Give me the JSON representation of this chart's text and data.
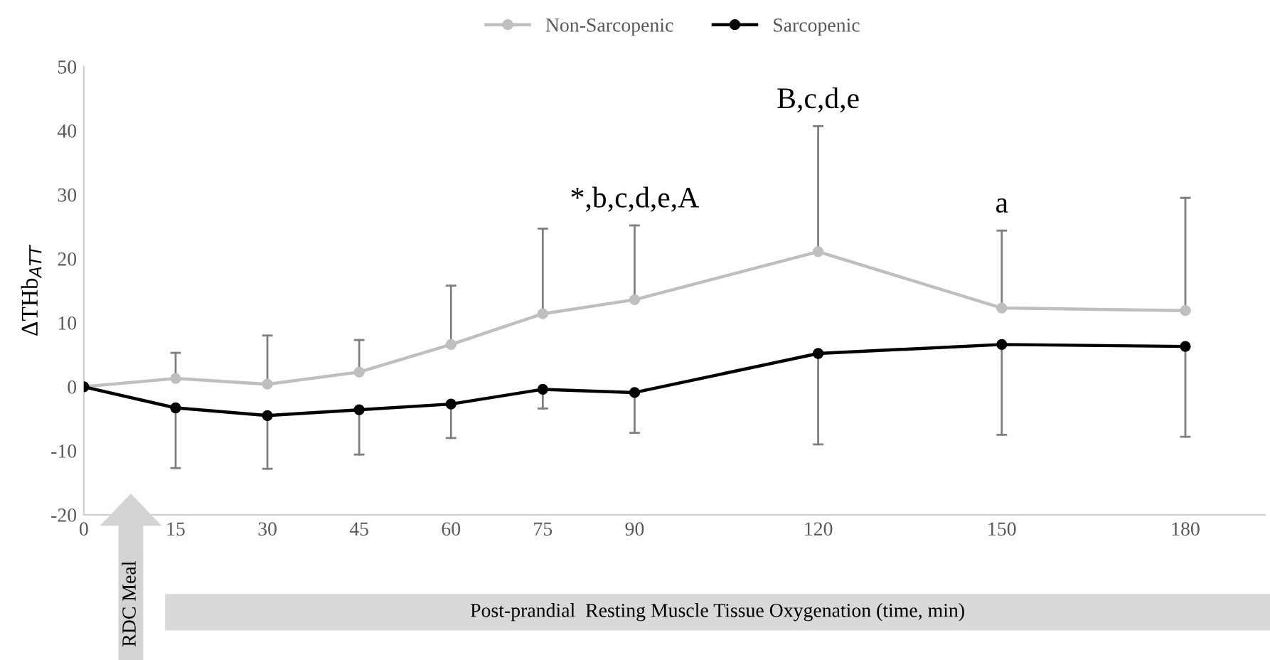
{
  "chart_data": {
    "type": "line",
    "xlabel": "Post-prandial  Resting Muscle Tissue Oxygenation (time, min)",
    "ylabel": "ΔTHb$_{ATT}$",
    "x": [
      0,
      15,
      30,
      45,
      60,
      75,
      90,
      120,
      150,
      180
    ],
    "series": [
      {
        "name": "Non-Sarcopenic",
        "color": "#bfbfbf",
        "values": [
          0,
          1.3,
          0.4,
          2.3,
          6.6,
          11.4,
          13.6,
          21.1,
          12.3,
          11.9
        ],
        "errors": [
          null,
          [
            1.3,
            5.3
          ],
          [
            0.4,
            8.0
          ],
          [
            2.3,
            7.3
          ],
          [
            6.6,
            15.8
          ],
          [
            11.4,
            24.7
          ],
          [
            13.6,
            25.2
          ],
          [
            21.1,
            40.7
          ],
          [
            12.3,
            24.4
          ],
          [
            11.9,
            29.5
          ]
        ]
      },
      {
        "name": "Sarcopenic",
        "color": "#000000",
        "values": [
          0,
          -3.3,
          -4.5,
          -3.6,
          -2.7,
          -0.4,
          -0.9,
          5.2,
          6.6,
          6.3
        ],
        "errors": [
          null,
          [
            -12.7,
            -3.3
          ],
          [
            -12.8,
            -4.5
          ],
          [
            -10.6,
            -3.6
          ],
          [
            -8.0,
            -2.7
          ],
          [
            -3.4,
            -0.4
          ],
          [
            -7.2,
            -0.9
          ],
          [
            -9.0,
            5.2
          ],
          [
            -7.5,
            6.6
          ],
          [
            -7.8,
            6.3
          ]
        ]
      }
    ],
    "annotations": [
      {
        "text": "*,b,c,d,e,A",
        "x": 90,
        "y": 25.2
      },
      {
        "text": "B,c,d,e",
        "x": 120,
        "y": 40.7
      },
      {
        "text": "a",
        "x": 150,
        "y": 24.4
      },
      "RDC Meal"
    ],
    "xlim": [
      0,
      193
    ],
    "ylim": [
      -20,
      50
    ],
    "xticks": [
      0,
      15,
      30,
      45,
      60,
      75,
      90,
      120,
      150,
      180
    ],
    "yticks": [
      -20,
      -10,
      0,
      10,
      20,
      30,
      40,
      50
    ],
    "grid": false,
    "legend": "top",
    "marker": "circle",
    "line_style": "solid"
  }
}
